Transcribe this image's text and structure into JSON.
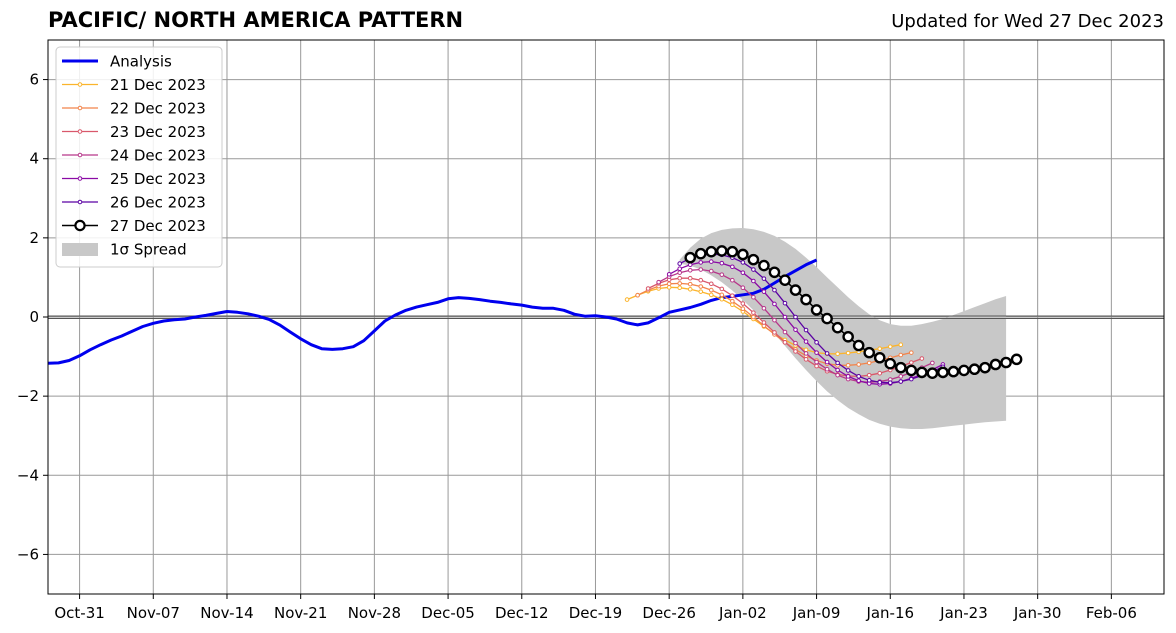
{
  "header": {
    "title": "PACIFIC/ NORTH AMERICA PATTERN",
    "updated": "Updated for Wed 27 Dec 2023"
  },
  "chart_data": {
    "type": "line",
    "title": "PACIFIC/ NORTH AMERICA PATTERN",
    "subtitle": "Updated for Wed 27 Dec 2023",
    "xlabel": "",
    "ylabel": "",
    "x_axis": "date",
    "xlim": [
      "2023-10-28",
      "2024-02-11"
    ],
    "ylim": [
      -7,
      7
    ],
    "grid": true,
    "zero_line": true,
    "legend_position": "top-left",
    "x_ticks": [
      "Oct-31",
      "Nov-07",
      "Nov-14",
      "Nov-21",
      "Nov-28",
      "Dec-05",
      "Dec-12",
      "Dec-19",
      "Dec-26",
      "Jan-02",
      "Jan-09",
      "Jan-16",
      "Jan-23",
      "Jan-30",
      "Feb-06"
    ],
    "x_tick_dates": [
      "2023-10-31",
      "2023-11-07",
      "2023-11-14",
      "2023-11-21",
      "2023-11-28",
      "2023-12-05",
      "2023-12-12",
      "2023-12-19",
      "2023-12-26",
      "2024-01-02",
      "2024-01-09",
      "2024-01-16",
      "2024-01-23",
      "2024-01-30",
      "2024-02-06"
    ],
    "y_ticks": [
      -6,
      -4,
      -2,
      0,
      2,
      4,
      6
    ],
    "y_tick_labels": [
      "−6",
      "−4",
      "−2",
      "0",
      "2",
      "4",
      "6"
    ],
    "analysis": {
      "name": "Analysis",
      "color": "#0000ee",
      "start": "2023-10-28",
      "values": [
        -1.17,
        -1.16,
        -1.1,
        -0.98,
        -0.83,
        -0.7,
        -0.58,
        -0.48,
        -0.36,
        -0.24,
        -0.16,
        -0.1,
        -0.07,
        -0.05,
        -0.0,
        0.04,
        0.09,
        0.14,
        0.12,
        0.08,
        0.02,
        -0.06,
        -0.2,
        -0.38,
        -0.55,
        -0.7,
        -0.8,
        -0.82,
        -0.8,
        -0.75,
        -0.6,
        -0.35,
        -0.1,
        0.05,
        0.17,
        0.25,
        0.31,
        0.37,
        0.46,
        0.49,
        0.47,
        0.44,
        0.4,
        0.37,
        0.33,
        0.3,
        0.25,
        0.22,
        0.22,
        0.17,
        0.07,
        0.02,
        0.03,
        0.0,
        -0.05,
        -0.15,
        -0.2,
        -0.15,
        -0.02,
        0.12,
        0.18,
        0.24,
        0.32,
        0.42,
        0.49,
        0.52,
        0.56,
        0.6,
        0.7,
        0.86,
        1.02,
        1.17,
        1.32,
        1.44
      ]
    },
    "forecasts": [
      {
        "name": "21 Dec 2023",
        "color": "#fbb42c",
        "start": "2023-12-22",
        "values": [
          0.44,
          0.55,
          0.65,
          0.72,
          0.75,
          0.74,
          0.7,
          0.64,
          0.56,
          0.45,
          0.31,
          0.14,
          -0.05,
          -0.24,
          -0.42,
          -0.58,
          -0.72,
          -0.83,
          -0.9,
          -0.93,
          -0.93,
          -0.91,
          -0.88,
          -0.84,
          -0.8,
          -0.75,
          -0.7
        ]
      },
      {
        "name": "22 Dec 2023",
        "color": "#f2844b",
        "start": "2023-12-23",
        "values": [
          0.55,
          0.68,
          0.78,
          0.84,
          0.85,
          0.83,
          0.77,
          0.68,
          0.56,
          0.4,
          0.21,
          0.0,
          -0.22,
          -0.44,
          -0.64,
          -0.82,
          -0.98,
          -1.1,
          -1.18,
          -1.22,
          -1.22,
          -1.2,
          -1.16,
          -1.1,
          -1.03,
          -0.96,
          -0.9
        ]
      },
      {
        "name": "23 Dec 2023",
        "color": "#d9586b",
        "start": "2023-12-24",
        "values": [
          0.72,
          0.85,
          0.94,
          0.98,
          0.98,
          0.93,
          0.84,
          0.71,
          0.54,
          0.34,
          0.11,
          -0.14,
          -0.39,
          -0.64,
          -0.87,
          -1.07,
          -1.24,
          -1.37,
          -1.45,
          -1.49,
          -1.5,
          -1.47,
          -1.42,
          -1.34,
          -1.25,
          -1.15,
          -1.05
        ]
      },
      {
        "name": "24 Dec 2023",
        "color": "#b7378a",
        "start": "2023-12-25",
        "values": [
          0.88,
          1.02,
          1.12,
          1.18,
          1.2,
          1.16,
          1.07,
          0.93,
          0.74,
          0.5,
          0.22,
          -0.08,
          -0.38,
          -0.66,
          -0.92,
          -1.14,
          -1.32,
          -1.47,
          -1.57,
          -1.63,
          -1.65,
          -1.63,
          -1.58,
          -1.5,
          -1.4,
          -1.28,
          -1.16
        ]
      },
      {
        "name": "25 Dec 2023",
        "color": "#8b0aa5",
        "start": "2023-12-26",
        "values": [
          1.08,
          1.22,
          1.32,
          1.38,
          1.4,
          1.36,
          1.27,
          1.12,
          0.91,
          0.64,
          0.33,
          0.0,
          -0.32,
          -0.62,
          -0.9,
          -1.14,
          -1.34,
          -1.5,
          -1.61,
          -1.68,
          -1.7,
          -1.68,
          -1.63,
          -1.55,
          -1.45,
          -1.33,
          -1.2
        ]
      },
      {
        "name": "26 Dec 2023",
        "color": "#5b02a3",
        "start": "2023-12-27",
        "values": [
          1.35,
          1.48,
          1.56,
          1.59,
          1.57,
          1.5,
          1.38,
          1.2,
          0.97,
          0.68,
          0.35,
          0.0,
          -0.33,
          -0.64,
          -0.92,
          -1.16,
          -1.35,
          -1.5,
          -1.6,
          -1.65,
          -1.66,
          -1.63,
          -1.57,
          -1.48,
          -1.38,
          -1.26
        ]
      }
    ],
    "latest": {
      "name": "27 Dec 2023",
      "color": "#000000",
      "start": "2023-12-28",
      "values": [
        1.5,
        1.6,
        1.65,
        1.67,
        1.65,
        1.58,
        1.45,
        1.3,
        1.13,
        0.93,
        0.68,
        0.44,
        0.18,
        -0.04,
        -0.27,
        -0.5,
        -0.72,
        -0.9,
        -1.03,
        -1.18,
        -1.28,
        -1.35,
        -1.4,
        -1.42,
        -1.4,
        -1.38,
        -1.35,
        -1.32,
        -1.28,
        -1.2,
        -1.15,
        -1.07
      ]
    },
    "spread": {
      "name": "1σ Spread",
      "color": "#c8c8c8",
      "start": "2023-12-27",
      "upper": [
        1.45,
        1.75,
        1.98,
        2.12,
        2.2,
        2.24,
        2.25,
        2.22,
        2.15,
        2.05,
        1.9,
        1.72,
        1.5,
        1.26,
        1.0,
        0.75,
        0.5,
        0.27,
        0.07,
        -0.08,
        -0.18,
        -0.22,
        -0.22,
        -0.18,
        -0.12,
        -0.05,
        0.05,
        0.15,
        0.25,
        0.35,
        0.45,
        0.53
      ],
      "lower": [
        1.35,
        1.3,
        1.2,
        1.05,
        0.88,
        0.67,
        0.43,
        0.17,
        -0.12,
        -0.42,
        -0.73,
        -1.04,
        -1.34,
        -1.62,
        -1.88,
        -2.1,
        -2.3,
        -2.46,
        -2.6,
        -2.7,
        -2.77,
        -2.81,
        -2.83,
        -2.83,
        -2.81,
        -2.78,
        -2.75,
        -2.72,
        -2.69,
        -2.66,
        -2.64,
        -2.62
      ]
    }
  }
}
